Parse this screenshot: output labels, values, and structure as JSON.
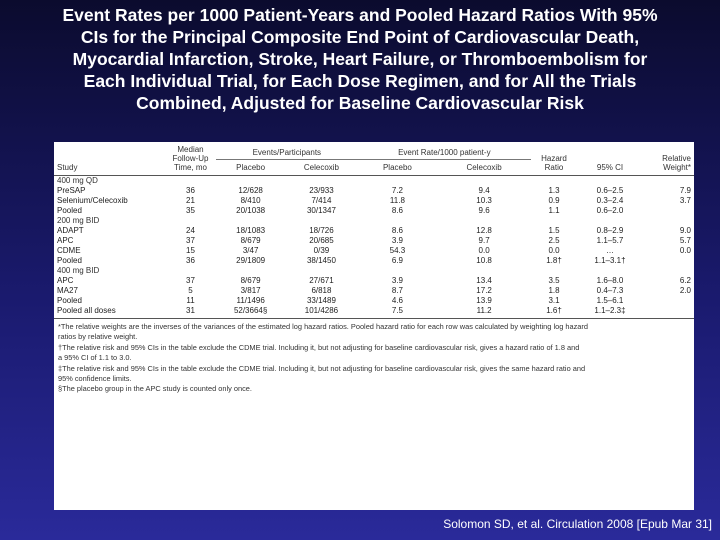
{
  "title_lines": [
    "Event Rates per 1000 Patient-Years and Pooled Hazard Ratios With 95%",
    "CIs for the Principal Composite End Point of Cardiovascular Death,",
    "Myocardial Infarction, Stroke, Heart Failure, or Thromboembolism for",
    "Each Individual Trial, for Each Dose Regimen, and for All the Trials",
    "Combined, Adjusted for Baseline Cardiovascular Risk"
  ],
  "table": {
    "headers": {
      "study": "Study",
      "followup": "Median Follow-Up Time, mo",
      "events_group": "Events/Participants",
      "rate_group": "Event Rate/1000 patient-y",
      "placebo": "Placebo",
      "celecoxib": "Celecoxib",
      "placebo2": "Placebo",
      "celecoxib2": "Celecoxib",
      "hr": "Hazard Ratio",
      "ci": "95% CI",
      "weight": "Relative Weight*"
    },
    "rows": [
      {
        "type": "group",
        "study": "400 mg QD"
      },
      {
        "type": "row",
        "study": "PreSAP",
        "followup": "36",
        "ev_p": "12/628",
        "ev_c": "23/933",
        "r_p": "7.2",
        "r_c": "9.4",
        "hr": "1.3",
        "ci": "0.6–2.5",
        "w": "7.9"
      },
      {
        "type": "row",
        "study": "Selenium/Celecoxib",
        "followup": "21",
        "ev_p": "8/410",
        "ev_c": "7/414",
        "r_p": "11.8",
        "r_c": "10.3",
        "hr": "0.9",
        "ci": "0.3–2.4",
        "w": "3.7"
      },
      {
        "type": "row",
        "study": "Pooled",
        "followup": "35",
        "ev_p": "20/1038",
        "ev_c": "30/1347",
        "r_p": "8.6",
        "r_c": "9.6",
        "hr": "1.1",
        "ci": "0.6–2.0",
        "w": ""
      },
      {
        "type": "group",
        "study": "200 mg BID"
      },
      {
        "type": "row",
        "study": "ADAPT",
        "followup": "24",
        "ev_p": "18/1083",
        "ev_c": "18/726",
        "r_p": "8.6",
        "r_c": "12.8",
        "hr": "1.5",
        "ci": "0.8–2.9",
        "w": "9.0"
      },
      {
        "type": "row",
        "study": "APC",
        "followup": "37",
        "ev_p": "8/679",
        "ev_c": "20/685",
        "r_p": "3.9",
        "r_c": "9.7",
        "hr": "2.5",
        "ci": "1.1–5.7",
        "w": "5.7"
      },
      {
        "type": "row",
        "study": "CDME",
        "followup": "15",
        "ev_p": "3/47",
        "ev_c": "0/39",
        "r_p": "54.3",
        "r_c": "0.0",
        "hr": "0.0",
        "ci": "…",
        "w": "0.0"
      },
      {
        "type": "row",
        "study": "Pooled",
        "followup": "36",
        "ev_p": "29/1809",
        "ev_c": "38/1450",
        "r_p": "6.9",
        "r_c": "10.8",
        "hr": "1.8†",
        "ci": "1.1–3.1†",
        "w": ""
      },
      {
        "type": "group",
        "study": "400 mg BID"
      },
      {
        "type": "row",
        "study": "APC",
        "followup": "37",
        "ev_p": "8/679",
        "ev_c": "27/671",
        "r_p": "3.9",
        "r_c": "13.4",
        "hr": "3.5",
        "ci": "1.6–8.0",
        "w": "6.2"
      },
      {
        "type": "row",
        "study": "MA27",
        "followup": "5",
        "ev_p": "3/817",
        "ev_c": "6/818",
        "r_p": "8.7",
        "r_c": "17.2",
        "hr": "1.8",
        "ci": "0.4–7.3",
        "w": "2.0"
      },
      {
        "type": "row",
        "study": "Pooled",
        "followup": "11",
        "ev_p": "11/1496",
        "ev_c": "33/1489",
        "r_p": "4.6",
        "r_c": "13.9",
        "hr": "3.1",
        "ci": "1.5–6.1",
        "w": ""
      },
      {
        "type": "row",
        "study": "Pooled all doses",
        "followup": "31",
        "ev_p": "52/3664§",
        "ev_c": "101/4286",
        "r_p": "7.5",
        "r_c": "11.2",
        "hr": "1.6†",
        "ci": "1.1–2.3‡",
        "w": ""
      }
    ],
    "notes": [
      "*The relative weights are the inverses of the variances of the estimated log hazard ratios. Pooled hazard ratio for each row was calculated by weighting log hazard",
      "ratios by relative weight.",
      "†The relative risk and 95% CIs in the table exclude the CDME trial. Including it, but not adjusting for baseline cardiovascular risk, gives a hazard ratio of 1.8 and",
      "a 95% CI of 1.1 to 3.0.",
      "‡The relative risk and 95% CIs in the table exclude the CDME trial. Including it, but not adjusting for baseline cardiovascular risk, gives the same hazard ratio and",
      "95% confidence limits.",
      "§The placebo group in the APC study is counted only once."
    ]
  },
  "citation": "Solomon SD, et al. Circulation 2008 [Epub Mar 31]"
}
